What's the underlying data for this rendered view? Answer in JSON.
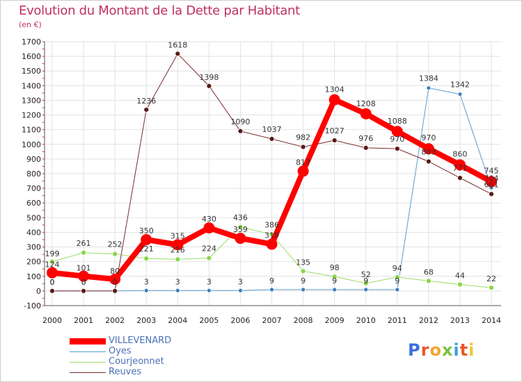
{
  "title": "Evolution du Montant de la Dette par Habitant",
  "unit": "(en €)",
  "logo_text": "Proxiti",
  "chart_data": {
    "type": "line",
    "title": "Evolution du Montant de la Dette par Habitant",
    "ylabel": "(en €)",
    "xlabel": "",
    "x": [
      "2000",
      "2001",
      "2002",
      "2003",
      "2004",
      "2005",
      "2006",
      "2007",
      "2008",
      "2009",
      "2010",
      "2011",
      "2012",
      "2013",
      "2014"
    ],
    "ylim": [
      -100,
      1700
    ],
    "yticks": [
      -100,
      0,
      100,
      200,
      300,
      400,
      500,
      600,
      700,
      800,
      900,
      1000,
      1100,
      1200,
      1300,
      1400,
      1500,
      1600,
      1700
    ],
    "grid": true,
    "legend_position": "bottom-left",
    "series": [
      {
        "name": "VILLEVENARD",
        "color": "#ff0000",
        "values": [
          124,
          101,
          80,
          350,
          315,
          430,
          359,
          319,
          817,
          1304,
          1208,
          1088,
          970,
          860,
          745
        ],
        "labels": [
          "124",
          "101",
          "80",
          "350",
          "315",
          "430",
          "359",
          "319",
          "817",
          "1304",
          "1208",
          "1088",
          "970",
          "860",
          "745"
        ]
      },
      {
        "name": "Oyes",
        "color": "#5a9bd0",
        "values": [
          0,
          0,
          0,
          3,
          3,
          3,
          3,
          9,
          9,
          9,
          9,
          9,
          1384,
          1342,
          704
        ],
        "labels": [
          "0",
          "0",
          "0",
          "3",
          "3",
          "3",
          "3",
          "9",
          "9",
          "9",
          "9",
          "9",
          "1384",
          "1342",
          "704"
        ]
      },
      {
        "name": "Courjeonnet",
        "color": "#99dd66",
        "values": [
          199,
          261,
          252,
          221,
          216,
          224,
          436,
          386,
          135,
          98,
          52,
          94,
          68,
          44,
          22
        ],
        "labels": [
          "199",
          "261",
          "252",
          "221",
          "216",
          "224",
          "436",
          "386",
          "135",
          "98",
          "52",
          "94",
          "68",
          "44",
          "22"
        ]
      },
      {
        "name": "Reuves",
        "color": "#7a2a2a",
        "values": [
          0,
          0,
          0,
          1236,
          1618,
          1398,
          1090,
          1037,
          982,
          1027,
          976,
          970,
          883,
          771,
          661
        ],
        "labels": [
          "0",
          "0",
          "0",
          "1236",
          "1618",
          "1398",
          "1090",
          "1037",
          "982",
          "1027",
          "976",
          "970",
          "883",
          "771",
          "661"
        ]
      }
    ]
  }
}
